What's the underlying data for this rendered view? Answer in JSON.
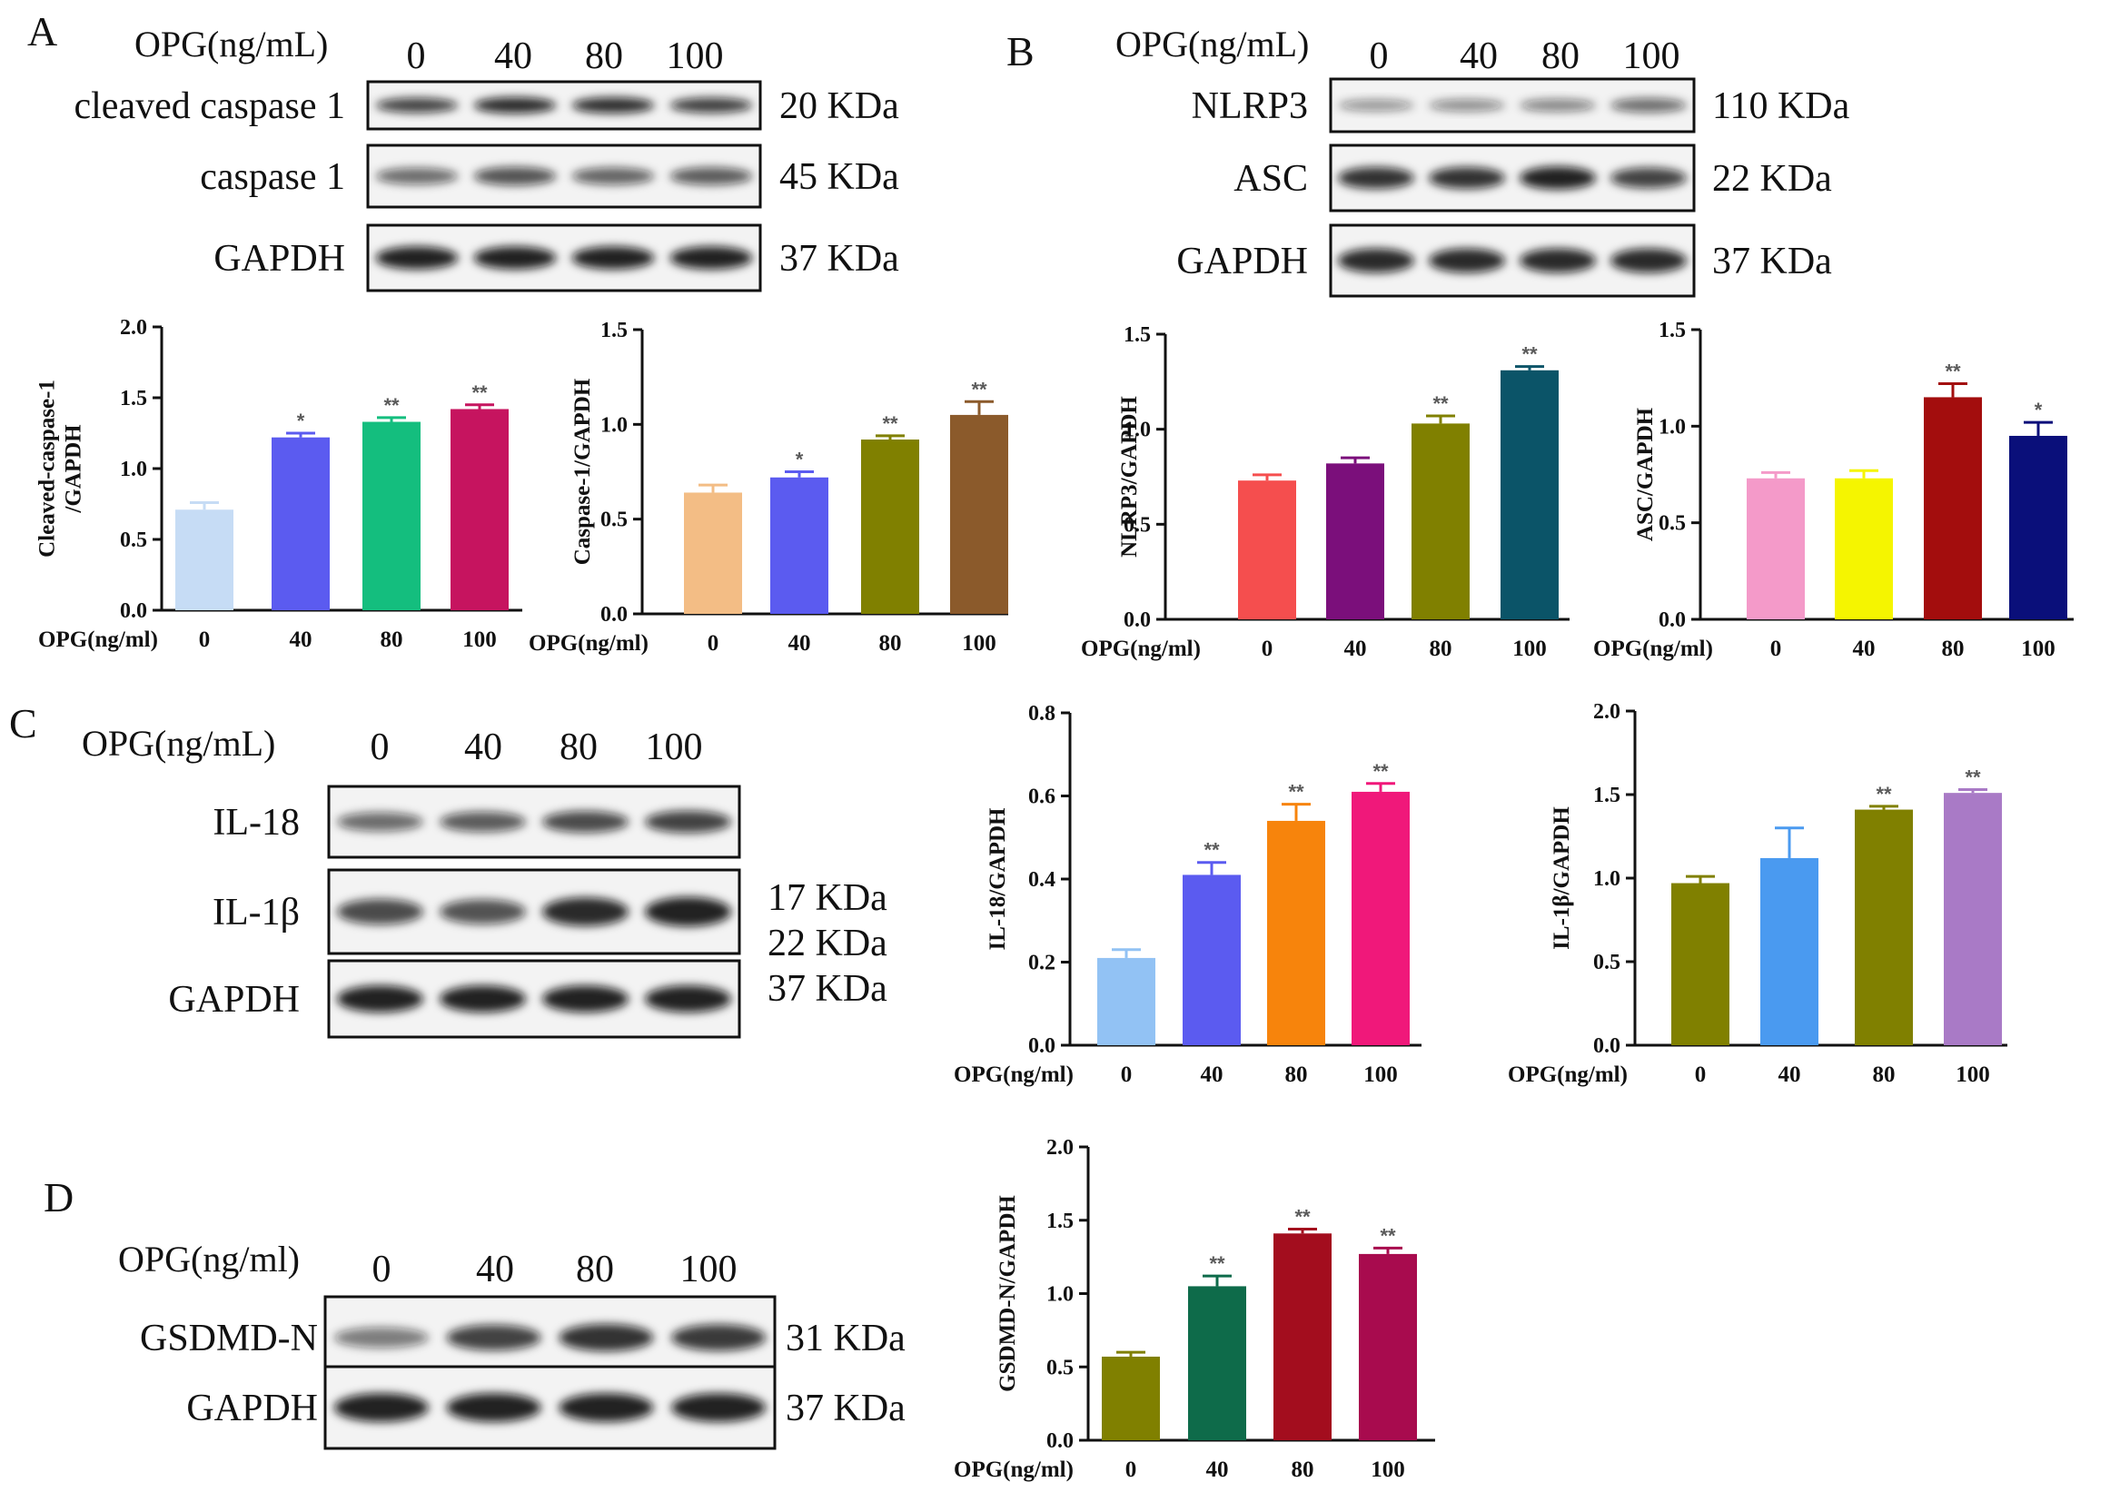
{
  "panel_letters": [
    "A",
    "B",
    "C",
    "D"
  ],
  "blots": [
    {
      "header": "OPG(ng/mL)",
      "lanes": [
        "0",
        "40",
        "80",
        "100"
      ],
      "rows": [
        {
          "label": "cleaved caspase 1",
          "kda": "20 KDa",
          "bands": [
            0.75,
            0.9,
            0.88,
            0.78
          ]
        },
        {
          "label": "caspase 1",
          "kda": "45 KDa",
          "bands": [
            0.5,
            0.65,
            0.55,
            0.6
          ]
        },
        {
          "label": "GAPDH",
          "kda": "37 KDa",
          "bands": [
            0.95,
            0.95,
            0.95,
            0.95
          ]
        }
      ]
    },
    {
      "header": "OPG(ng/mL)",
      "lanes": [
        "0",
        "40",
        "80",
        "100"
      ],
      "rows": [
        {
          "label": "NLRP3",
          "kda": "110 KDa",
          "bands": [
            0.25,
            0.3,
            0.35,
            0.5
          ]
        },
        {
          "label": "ASC",
          "kda": "22 KDa",
          "bands": [
            0.85,
            0.85,
            0.95,
            0.75
          ]
        },
        {
          "label": "GAPDH",
          "kda": "37 KDa",
          "bands": [
            0.9,
            0.9,
            0.9,
            0.9
          ]
        }
      ]
    },
    {
      "header": "OPG(ng/mL)",
      "lanes": [
        "0",
        "40",
        "80",
        "100"
      ],
      "rows": [
        {
          "label": "IL-18",
          "kda": "",
          "bands": [
            0.5,
            0.6,
            0.7,
            0.75
          ]
        },
        {
          "label": "IL-1β",
          "kda": "",
          "bands": [
            0.7,
            0.65,
            0.9,
            0.95
          ]
        },
        {
          "label": "GAPDH",
          "kda": "",
          "bands": [
            0.95,
            0.95,
            0.95,
            0.95
          ]
        }
      ],
      "kda_list": [
        "17 KDa",
        "22 KDa",
        "37 KDa"
      ]
    },
    {
      "header": "OPG(ng/ml)",
      "lanes": [
        "0",
        "40",
        "80",
        "100"
      ],
      "rows": [
        {
          "label": "GSDMD-N",
          "kda": "31 KDa",
          "bands": [
            0.4,
            0.75,
            0.85,
            0.8
          ]
        },
        {
          "label": "GAPDH",
          "kda": "37 KDa",
          "bands": [
            0.95,
            0.95,
            0.95,
            0.95
          ]
        }
      ]
    }
  ],
  "chart_data": [
    {
      "type": "bar",
      "ylabel": "Cleaved-caspase-1\n/GAPDH",
      "xlabel": "OPG(ng/ml)",
      "categories": [
        "0",
        "40",
        "80",
        "100"
      ],
      "ylim": [
        0,
        2.0
      ],
      "yticks": [
        "0.0",
        "0.5",
        "1.0",
        "1.5",
        "2.0"
      ],
      "values": [
        0.71,
        1.22,
        1.33,
        1.42
      ],
      "errors": [
        0.05,
        0.03,
        0.03,
        0.03
      ],
      "sig": [
        "",
        "*",
        "**",
        "**"
      ],
      "colors": [
        "#c6dcf5",
        "#5b5bf0",
        "#14be7e",
        "#c6145f"
      ]
    },
    {
      "type": "bar",
      "ylabel": "Caspase-1/GAPDH",
      "xlabel": "OPG(ng/ml)",
      "categories": [
        "0",
        "40",
        "80",
        "100"
      ],
      "ylim": [
        0,
        1.5
      ],
      "yticks": [
        "0.0",
        "0.5",
        "1.0",
        "1.5"
      ],
      "values": [
        0.64,
        0.72,
        0.92,
        1.05
      ],
      "errors": [
        0.04,
        0.03,
        0.02,
        0.07
      ],
      "sig": [
        "",
        "*",
        "**",
        "**"
      ],
      "colors": [
        "#f3bd85",
        "#5b5bf0",
        "#808000",
        "#8b5a2b"
      ]
    },
    {
      "type": "bar",
      "ylabel": "NLRP3/GAPDH",
      "xlabel": "OPG(ng/ml)",
      "categories": [
        "0",
        "40",
        "80",
        "100"
      ],
      "ylim": [
        0,
        1.5
      ],
      "yticks": [
        "0.0",
        "0.5",
        "1.0",
        "1.5"
      ],
      "values": [
        0.73,
        0.82,
        1.03,
        1.31
      ],
      "errors": [
        0.03,
        0.03,
        0.04,
        0.02
      ],
      "sig": [
        "",
        "",
        "**",
        "**"
      ],
      "colors": [
        "#f54e4e",
        "#7b0f7b",
        "#808000",
        "#0b5468"
      ]
    },
    {
      "type": "bar",
      "ylabel": "ASC/GAPDH",
      "xlabel": "OPG(ng/ml)",
      "categories": [
        "0",
        "40",
        "80",
        "100"
      ],
      "ylim": [
        0,
        1.5
      ],
      "yticks": [
        "0.0",
        "0.5",
        "1.0",
        "1.5"
      ],
      "values": [
        0.73,
        0.73,
        1.15,
        0.95
      ],
      "errors": [
        0.03,
        0.04,
        0.07,
        0.07
      ],
      "sig": [
        "",
        "",
        "**",
        "*"
      ],
      "colors": [
        "#f49ac9",
        "#f5f500",
        "#a30d0d",
        "#0a0f7a"
      ]
    },
    {
      "type": "bar",
      "ylabel": "IL-18/GAPDH",
      "xlabel": "OPG(ng/ml)",
      "categories": [
        "0",
        "40",
        "80",
        "100"
      ],
      "ylim": [
        0,
        0.8
      ],
      "yticks": [
        "0.0",
        "0.2",
        "0.4",
        "0.6",
        "0.8"
      ],
      "values": [
        0.21,
        0.41,
        0.54,
        0.61
      ],
      "errors": [
        0.02,
        0.03,
        0.04,
        0.02
      ],
      "sig": [
        "",
        "**",
        "**",
        "**"
      ],
      "colors": [
        "#92c2f4",
        "#5b5bf0",
        "#f7840c",
        "#f0187a"
      ]
    },
    {
      "type": "bar",
      "ylabel": "IL-1β/GAPDH",
      "xlabel": "OPG(ng/ml)",
      "categories": [
        "0",
        "40",
        "80",
        "100"
      ],
      "ylim": [
        0,
        2.0
      ],
      "yticks": [
        "0.0",
        "0.5",
        "1.0",
        "1.5",
        "2.0"
      ],
      "values": [
        0.97,
        1.12,
        1.41,
        1.51
      ],
      "errors": [
        0.04,
        0.18,
        0.02,
        0.02
      ],
      "sig": [
        "",
        "",
        "**",
        "**"
      ],
      "colors": [
        "#808000",
        "#4a9af0",
        "#808000",
        "#a97ac6"
      ]
    },
    {
      "type": "bar",
      "ylabel": "GSDMD-N/GAPDH",
      "xlabel": "OPG(ng/ml)",
      "categories": [
        "0",
        "40",
        "80",
        "100"
      ],
      "ylim": [
        0,
        2.0
      ],
      "yticks": [
        "0.0",
        "0.5",
        "1.0",
        "1.5",
        "2.0"
      ],
      "values": [
        0.57,
        1.05,
        1.41,
        1.27
      ],
      "errors": [
        0.03,
        0.07,
        0.03,
        0.04
      ],
      "sig": [
        "",
        "**",
        "**",
        "**"
      ],
      "colors": [
        "#808000",
        "#0e6b4a",
        "#a30d1e",
        "#a80b4e"
      ]
    }
  ]
}
